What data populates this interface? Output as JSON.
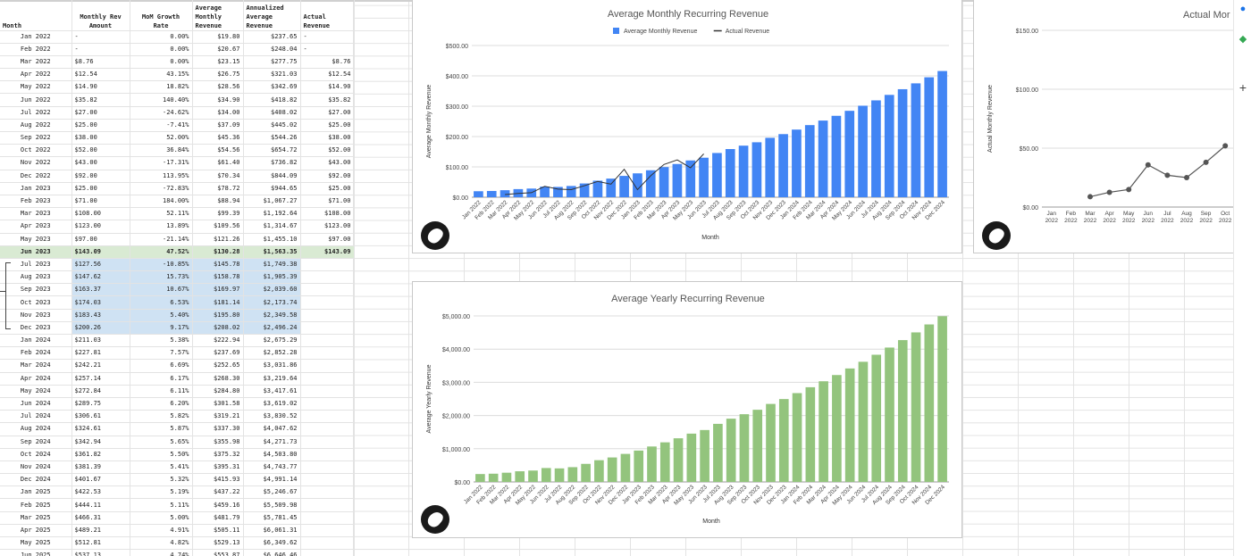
{
  "sheet": {
    "headers": [
      "Month",
      "Monthly Rev Amount",
      "MoM Growth Rate",
      "Average Monthly Revenue",
      "Annualized Average Revenue",
      "Actual Revenue"
    ],
    "rows": [
      [
        "Jan 2022",
        "-",
        "0.00%",
        "$19.80",
        "$237.65",
        "-"
      ],
      [
        "Feb 2022",
        "-",
        "0.00%",
        "$20.67",
        "$248.04",
        "-"
      ],
      [
        "Mar 2022",
        "$8.76",
        "0.00%",
        "$23.15",
        "$277.75",
        "$8.76"
      ],
      [
        "Apr 2022",
        "$12.54",
        "43.15%",
        "$26.75",
        "$321.03",
        "$12.54"
      ],
      [
        "May 2022",
        "$14.90",
        "18.82%",
        "$28.56",
        "$342.69",
        "$14.90"
      ],
      [
        "Jun 2022",
        "$35.82",
        "140.40%",
        "$34.90",
        "$418.82",
        "$35.82"
      ],
      [
        "Jul 2022",
        "$27.00",
        "-24.62%",
        "$34.00",
        "$408.02",
        "$27.00"
      ],
      [
        "Aug 2022",
        "$25.00",
        "-7.41%",
        "$37.09",
        "$445.02",
        "$25.00"
      ],
      [
        "Sep 2022",
        "$38.00",
        "52.00%",
        "$45.36",
        "$544.26",
        "$38.00"
      ],
      [
        "Oct 2022",
        "$52.00",
        "36.84%",
        "$54.56",
        "$654.72",
        "$52.00"
      ],
      [
        "Nov 2022",
        "$43.00",
        "-17.31%",
        "$61.40",
        "$736.82",
        "$43.00"
      ],
      [
        "Dec 2022",
        "$92.00",
        "113.95%",
        "$70.34",
        "$844.09",
        "$92.00"
      ],
      [
        "Jan 2023",
        "$25.00",
        "-72.83%",
        "$78.72",
        "$944.65",
        "$25.00"
      ],
      [
        "Feb 2023",
        "$71.00",
        "184.00%",
        "$88.94",
        "$1,067.27",
        "$71.00"
      ],
      [
        "Mar 2023",
        "$108.00",
        "52.11%",
        "$99.39",
        "$1,192.64",
        "$108.00"
      ],
      [
        "Apr 2023",
        "$123.00",
        "13.89%",
        "$109.56",
        "$1,314.67",
        "$123.00"
      ],
      [
        "May 2023",
        "$97.00",
        "-21.14%",
        "$121.26",
        "$1,455.10",
        "$97.00"
      ],
      [
        "Jun 2023",
        "$143.09",
        "47.52%",
        "$130.28",
        "$1,563.35",
        "$143.09"
      ],
      [
        "Jul 2023",
        "$127.56",
        "-10.85%",
        "$145.78",
        "$1,749.38",
        ""
      ],
      [
        "Aug 2023",
        "$147.62",
        "15.73%",
        "$158.78",
        "$1,905.39",
        ""
      ],
      [
        "Sep 2023",
        "$163.37",
        "10.67%",
        "$169.97",
        "$2,039.60",
        ""
      ],
      [
        "Oct 2023",
        "$174.03",
        "6.53%",
        "$181.14",
        "$2,173.74",
        ""
      ],
      [
        "Nov 2023",
        "$183.43",
        "5.40%",
        "$195.80",
        "$2,349.58",
        ""
      ],
      [
        "Dec 2023",
        "$200.26",
        "9.17%",
        "$208.02",
        "$2,496.24",
        ""
      ],
      [
        "Jan 2024",
        "$211.03",
        "5.38%",
        "$222.94",
        "$2,675.29",
        ""
      ],
      [
        "Feb 2024",
        "$227.81",
        "7.57%",
        "$237.69",
        "$2,852.28",
        ""
      ],
      [
        "Mar 2024",
        "$242.21",
        "6.69%",
        "$252.65",
        "$3,031.86",
        ""
      ],
      [
        "Apr 2024",
        "$257.14",
        "6.17%",
        "$268.30",
        "$3,219.64",
        ""
      ],
      [
        "May 2024",
        "$272.84",
        "6.11%",
        "$284.80",
        "$3,417.61",
        ""
      ],
      [
        "Jun 2024",
        "$289.75",
        "6.20%",
        "$301.58",
        "$3,619.02",
        ""
      ],
      [
        "Jul 2024",
        "$306.61",
        "5.82%",
        "$319.21",
        "$3,830.52",
        ""
      ],
      [
        "Aug 2024",
        "$324.61",
        "5.87%",
        "$337.30",
        "$4,047.62",
        ""
      ],
      [
        "Sep 2024",
        "$342.94",
        "5.65%",
        "$355.98",
        "$4,271.73",
        ""
      ],
      [
        "Oct 2024",
        "$361.82",
        "5.50%",
        "$375.32",
        "$4,503.80",
        ""
      ],
      [
        "Nov 2024",
        "$381.39",
        "5.41%",
        "$395.31",
        "$4,743.77",
        ""
      ],
      [
        "Dec 2024",
        "$401.67",
        "5.32%",
        "$415.93",
        "$4,991.14",
        ""
      ],
      [
        "Jan 2025",
        "$422.53",
        "5.19%",
        "$437.22",
        "$5,246.67",
        ""
      ],
      [
        "Feb 2025",
        "$444.11",
        "5.11%",
        "$459.16",
        "$5,509.98",
        ""
      ],
      [
        "Mar 2025",
        "$466.31",
        "5.00%",
        "$481.79",
        "$5,781.45",
        ""
      ],
      [
        "Apr 2025",
        "$489.21",
        "4.91%",
        "$505.11",
        "$6,061.31",
        ""
      ],
      [
        "May 2025",
        "$512.81",
        "4.82%",
        "$529.13",
        "$6,349.62",
        ""
      ],
      [
        "Jun 2025",
        "$537.13",
        "4.74%",
        "$553.87",
        "$6,646.46",
        ""
      ]
    ]
  },
  "chart_data": [
    {
      "type": "bar",
      "title": "Average Monthly Recurring Revenue",
      "xlabel": "Month",
      "ylabel": "Average Monthly Revenue",
      "ylim": [
        0,
        500
      ],
      "yticks": [
        "$0.00",
        "$100.00",
        "$200.00",
        "$300.00",
        "$400.00",
        "$500.00"
      ],
      "legend_position": "top",
      "categories": [
        "Jan 2022",
        "Feb 2022",
        "Mar 2022",
        "Apr 2022",
        "May 2022",
        "Jun 2022",
        "Jul 2022",
        "Aug 2022",
        "Sep 2022",
        "Oct 2022",
        "Nov 2022",
        "Dec 2022",
        "Jan 2023",
        "Feb 2023",
        "Mar 2023",
        "Apr 2023",
        "May 2023",
        "Jun 2023",
        "Jul 2023",
        "Aug 2023",
        "Sep 2023",
        "Oct 2023",
        "Nov 2023",
        "Dec 2023",
        "Jan 2024",
        "Feb 2024",
        "Mar 2024",
        "Apr 2024",
        "May 2024",
        "Jun 2024",
        "Jul 2024",
        "Aug 2024",
        "Sep 2024",
        "Oct 2024",
        "Nov 2024",
        "Dec 2024"
      ],
      "series": [
        {
          "name": "Average Monthly Revenue",
          "kind": "bar",
          "color": "#4285f4",
          "values": [
            19.8,
            20.67,
            23.15,
            26.75,
            28.56,
            34.9,
            34.0,
            37.09,
            45.36,
            54.56,
            61.4,
            70.34,
            78.72,
            88.94,
            99.39,
            109.56,
            121.26,
            130.28,
            145.78,
            158.78,
            169.97,
            181.14,
            195.8,
            208.02,
            222.94,
            237.69,
            252.65,
            268.3,
            284.8,
            301.58,
            319.21,
            337.3,
            355.98,
            375.32,
            395.31,
            415.93
          ]
        },
        {
          "name": "Actual Revenue",
          "kind": "line",
          "color": "#333333",
          "values": [
            null,
            null,
            8.76,
            12.54,
            14.9,
            35.82,
            27.0,
            25.0,
            38.0,
            52.0,
            43.0,
            92.0,
            25.0,
            71.0,
            108.0,
            123.0,
            97.0,
            143.09,
            null,
            null,
            null,
            null,
            null,
            null,
            null,
            null,
            null,
            null,
            null,
            null,
            null,
            null,
            null,
            null,
            null,
            null
          ]
        }
      ]
    },
    {
      "type": "line",
      "title": "Actual Mor",
      "ylabel": "Actual Monthly Revenue",
      "ylim": [
        0,
        150
      ],
      "yticks": [
        "$0.00",
        "$50.00",
        "$100.00",
        "$150.00"
      ],
      "categories": [
        "Jan 2022",
        "Feb 2022",
        "Mar 2022",
        "Apr 2022",
        "May 2022",
        "Jun 2022",
        "Jul 2022",
        "Aug 2022",
        "Sep 2022",
        "Oct 2022"
      ],
      "series": [
        {
          "name": "Actual Revenue",
          "color": "#555555",
          "values": [
            null,
            null,
            8.76,
            12.54,
            14.9,
            35.82,
            27.0,
            25.0,
            38.0,
            52.0
          ]
        }
      ]
    },
    {
      "type": "bar",
      "title": "Average Yearly Recurring Revenue",
      "xlabel": "Month",
      "ylabel": "Average Yearly Revenue",
      "ylim": [
        0,
        5000
      ],
      "yticks": [
        "$0.00",
        "$1,000.00",
        "$2,000.00",
        "$3,000.00",
        "$4,000.00",
        "$5,000.00"
      ],
      "categories": [
        "Jan 2022",
        "Feb 2022",
        "Mar 2022",
        "Apr 2022",
        "May 2022",
        "Jun 2022",
        "Jul 2022",
        "Aug 2022",
        "Sep 2022",
        "Oct 2022",
        "Nov 2022",
        "Dec 2022",
        "Jan 2023",
        "Feb 2023",
        "Mar 2023",
        "Apr 2023",
        "May 2023",
        "Jun 2023",
        "Jul 2023",
        "Aug 2023",
        "Sep 2023",
        "Oct 2023",
        "Nov 2023",
        "Dec 2023",
        "Jan 2024",
        "Feb 2024",
        "Mar 2024",
        "Apr 2024",
        "May 2024",
        "Jun 2024",
        "Jul 2024",
        "Aug 2024",
        "Sep 2024",
        "Oct 2024",
        "Nov 2024",
        "Dec 2024"
      ],
      "series": [
        {
          "name": "Annualized Average Revenue",
          "color": "#93c47d",
          "values": [
            237.65,
            248.04,
            277.75,
            321.03,
            342.69,
            418.82,
            408.02,
            445.02,
            544.26,
            654.72,
            736.82,
            844.09,
            944.65,
            1067.27,
            1192.64,
            1314.67,
            1455.1,
            1563.35,
            1749.38,
            1905.39,
            2039.6,
            2173.74,
            2349.58,
            2496.24,
            2675.29,
            2852.28,
            3031.86,
            3219.64,
            3417.61,
            3619.02,
            3830.52,
            4047.62,
            4271.73,
            4503.8,
            4743.77,
            4991.14
          ]
        }
      ]
    }
  ],
  "sidebar_icons": [
    "contacts-icon",
    "maps-icon",
    "add-icon"
  ]
}
